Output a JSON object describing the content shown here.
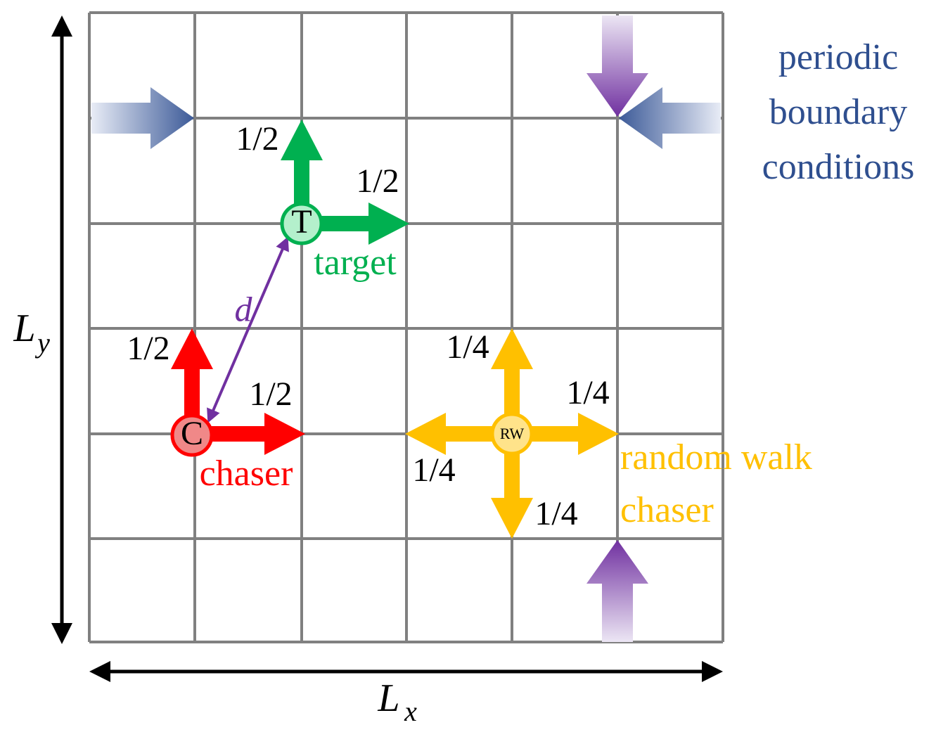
{
  "boundary_label": [
    "periodic",
    "boundary",
    "conditions"
  ],
  "target": {
    "symbol": "T",
    "label": "target",
    "probabilities": [
      "1/2",
      "1/2"
    ]
  },
  "chaser": {
    "symbol": "C",
    "label": "chaser",
    "probabilities": [
      "1/2",
      "1/2"
    ]
  },
  "random_walk_chaser": {
    "symbol": "RW",
    "label": [
      "random walk",
      "chaser"
    ],
    "probabilities": [
      "1/4",
      "1/4",
      "1/4",
      "1/4"
    ]
  },
  "distance_label": "d",
  "axes": {
    "y": {
      "main": "L",
      "sub": "y"
    },
    "x": {
      "main": "L",
      "sub": "x"
    }
  }
}
